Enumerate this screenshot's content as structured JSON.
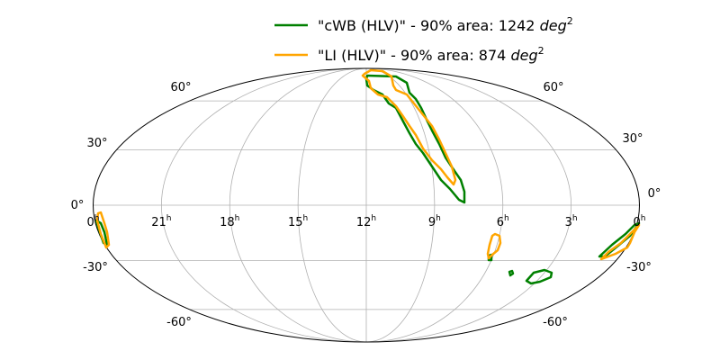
{
  "chart_data": {
    "type": "skymap-mollweide",
    "projection": "mollweide",
    "grid": true,
    "legend_placement": "top-center",
    "ra_tick_labels": [
      "0",
      "21",
      "18",
      "15",
      "12",
      "9",
      "6",
      "3",
      "0"
    ],
    "ra_tick_unit": "h",
    "ra_ticks_hours": [
      24,
      21,
      18,
      15,
      12,
      9,
      6,
      3,
      0
    ],
    "dec_tick_labels": [
      "60°",
      "30°",
      "0°",
      "-30°",
      "-60°"
    ],
    "dec_ticks_deg": [
      60,
      30,
      0,
      -30,
      -60
    ],
    "series": [
      {
        "name": "\"cWB (HLV)\" - 90% area: 1242 ",
        "unit": "deg",
        "unit_sup": "2",
        "area_deg2": 1242,
        "color": "#008000"
      },
      {
        "name": "\"LI (HLV)\" - 90% area: 874 ",
        "unit": "deg",
        "unit_sup": "2",
        "area_deg2": 874,
        "color": "#ffa500"
      }
    ]
  }
}
